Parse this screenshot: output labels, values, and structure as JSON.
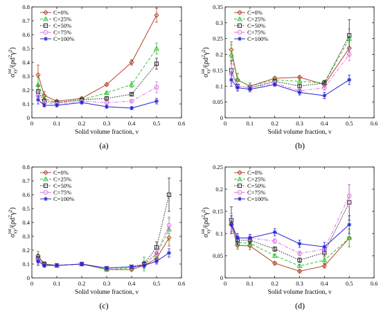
{
  "legend_labels": [
    "C=0%",
    "C=25%",
    "C=50%",
    "C=75%",
    "C=100%"
  ],
  "series_styles": [
    {
      "color": "#b5442c",
      "dash": "",
      "marker": "diamond"
    },
    {
      "color": "#2ec22e",
      "dash": "4,2.5",
      "marker": "triangle"
    },
    {
      "color": "#2a2a2a",
      "dash": "1.6,1.6",
      "marker": "square"
    },
    {
      "color": "#e070e6",
      "dash": "5,2,1.5,2",
      "marker": "circle"
    },
    {
      "color": "#2222d8",
      "dash": "",
      "marker": "star"
    }
  ],
  "chart_data": [
    {
      "type": "line",
      "panel_label": "(a)",
      "xlabel": "Solid volume fraction, ν",
      "ylabel": "σxy^tot/(ρd²γ̇²)",
      "xlim": [
        0,
        0.6
      ],
      "ylim": [
        0,
        0.8
      ],
      "xticks": [
        0,
        0.1,
        0.2,
        0.3,
        0.4,
        0.5,
        0.6
      ],
      "xtick_labels": [
        "0",
        "0.1",
        "0.2",
        "0.3",
        "0.4",
        "0.5",
        "0.6"
      ],
      "yticks": [
        0,
        0.1,
        0.2,
        0.3,
        0.4,
        0.5,
        0.6,
        0.7,
        0.8
      ],
      "ytick_labels": [
        "0",
        "0.1",
        "0.2",
        "0.3",
        "0.4",
        "0.5",
        "0.6",
        "0.7",
        "0.8"
      ],
      "x": [
        0.025,
        0.05,
        0.1,
        0.2,
        0.3,
        0.4,
        0.5
      ],
      "series": [
        {
          "name": "C=0%",
          "values": [
            0.31,
            0.16,
            0.12,
            0.14,
            0.24,
            0.4,
            0.74
          ],
          "errors": [
            0.07,
            0.03,
            0.01,
            0.01,
            0.01,
            0.02,
            0.05
          ]
        },
        {
          "name": "C=25%",
          "values": [
            0.24,
            0.14,
            0.11,
            0.13,
            0.18,
            0.24,
            0.5
          ],
          "errors": [
            0.05,
            0.02,
            0.01,
            0.01,
            0.01,
            0.02,
            0.04
          ]
        },
        {
          "name": "C=50%",
          "values": [
            0.19,
            0.12,
            0.11,
            0.13,
            0.14,
            0.17,
            0.39
          ],
          "errors": [
            0.04,
            0.02,
            0.01,
            0.01,
            0.01,
            0.01,
            0.04
          ]
        },
        {
          "name": "C=75%",
          "values": [
            0.16,
            0.11,
            0.1,
            0.12,
            0.11,
            0.12,
            0.22
          ],
          "errors": [
            0.03,
            0.02,
            0.01,
            0.01,
            0.01,
            0.01,
            0.04
          ]
        },
        {
          "name": "C=100%",
          "values": [
            0.13,
            0.09,
            0.09,
            0.11,
            0.08,
            0.07,
            0.12
          ],
          "errors": [
            0.03,
            0.01,
            0.01,
            0.01,
            0.01,
            0.01,
            0.02
          ]
        }
      ]
    },
    {
      "type": "line",
      "panel_label": "(b)",
      "xlabel": "Solid volume fraction, ν",
      "ylabel": "σxy^tot/(ρd²γ̇²)",
      "xlim": [
        0,
        0.6
      ],
      "ylim": [
        0,
        0.35
      ],
      "xticks": [
        0,
        0.1,
        0.2,
        0.3,
        0.4,
        0.5,
        0.6
      ],
      "xtick_labels": [
        "0",
        "0.1",
        "0.2",
        "0.3",
        "0.4",
        "0.5",
        "0.6"
      ],
      "yticks": [
        0,
        0.05,
        0.1,
        0.15,
        0.2,
        0.25,
        0.3,
        0.35
      ],
      "ytick_labels": [
        "0",
        "0.05",
        "0.1",
        "0.15",
        "0.2",
        "0.25",
        "0.3",
        "0.35"
      ],
      "x": [
        0.025,
        0.05,
        0.1,
        0.2,
        0.3,
        0.4,
        0.5
      ],
      "series": [
        {
          "name": "C=0%",
          "values": [
            0.215,
            0.12,
            0.1,
            0.125,
            0.128,
            0.105,
            0.22
          ],
          "errors": [
            0.025,
            0.02,
            0.01,
            0.005,
            0.005,
            0.008,
            0.025
          ]
        },
        {
          "name": "C=25%",
          "values": [
            0.2,
            0.12,
            0.1,
            0.12,
            0.115,
            0.11,
            0.25
          ],
          "errors": [
            0.03,
            0.02,
            0.01,
            0.005,
            0.005,
            0.008,
            0.03
          ]
        },
        {
          "name": "C=50%",
          "values": [
            0.15,
            0.1,
            0.095,
            0.115,
            0.1,
            0.11,
            0.26
          ],
          "errors": [
            0.03,
            0.015,
            0.008,
            0.005,
            0.005,
            0.008,
            0.05
          ]
        },
        {
          "name": "C=75%",
          "values": [
            0.14,
            0.1,
            0.095,
            0.11,
            0.085,
            0.095,
            0.2
          ],
          "errors": [
            0.03,
            0.015,
            0.008,
            0.005,
            0.005,
            0.008,
            0.02
          ]
        },
        {
          "name": "C=100%",
          "values": [
            0.12,
            0.095,
            0.09,
            0.105,
            0.08,
            0.07,
            0.12
          ],
          "errors": [
            0.02,
            0.01,
            0.008,
            0.005,
            0.008,
            0.01,
            0.015
          ]
        }
      ]
    },
    {
      "type": "line",
      "panel_label": "(c)",
      "xlabel": "Solid volume fraction, ν",
      "ylabel": "σxy^tot/(ρd²γ̇²)",
      "xlim": [
        0,
        0.6
      ],
      "ylim": [
        0,
        0.8
      ],
      "xticks": [
        0,
        0.1,
        0.2,
        0.3,
        0.4,
        0.5,
        0.6
      ],
      "xtick_labels": [
        "0",
        "0.1",
        "0.2",
        "0.3",
        "0.4",
        "0.5",
        "0.6"
      ],
      "yticks": [
        0,
        0.1,
        0.2,
        0.3,
        0.4,
        0.5,
        0.6,
        0.7,
        0.8
      ],
      "ytick_labels": [
        "0",
        "0.1",
        "0.2",
        "0.3",
        "0.4",
        "0.5",
        "0.6",
        "0.7",
        "0.8"
      ],
      "x": [
        0.025,
        0.05,
        0.1,
        0.2,
        0.3,
        0.4,
        0.45,
        0.5,
        0.55
      ],
      "series": [
        {
          "name": "C=0%",
          "values": [
            0.16,
            0.1,
            0.09,
            0.1,
            0.06,
            0.06,
            0.09,
            0.14,
            0.29
          ],
          "errors": [
            0.03,
            0.015,
            0.01,
            0.01,
            0.01,
            0.01,
            0.02,
            0.03,
            0.06
          ]
        },
        {
          "name": "C=25%",
          "values": [
            0.15,
            0.1,
            0.09,
            0.1,
            0.06,
            0.07,
            0.1,
            0.17,
            0.35
          ],
          "errors": [
            0.04,
            0.015,
            0.01,
            0.01,
            0.01,
            0.01,
            0.05,
            0.04,
            0.08
          ]
        },
        {
          "name": "C=50%",
          "values": [
            0.14,
            0.1,
            0.09,
            0.1,
            0.07,
            0.08,
            0.1,
            0.22,
            0.6
          ],
          "errors": [
            0.03,
            0.015,
            0.01,
            0.01,
            0.01,
            0.01,
            0.02,
            0.04,
            0.12
          ]
        },
        {
          "name": "C=75%",
          "values": [
            0.13,
            0.09,
            0.09,
            0.1,
            0.07,
            0.08,
            0.09,
            0.18,
            0.38
          ],
          "errors": [
            0.03,
            0.015,
            0.01,
            0.01,
            0.01,
            0.01,
            0.02,
            0.03,
            0.06
          ]
        },
        {
          "name": "C=100%",
          "values": [
            0.12,
            0.09,
            0.09,
            0.1,
            0.07,
            0.08,
            0.09,
            0.12,
            0.18
          ],
          "errors": [
            0.03,
            0.01,
            0.01,
            0.01,
            0.01,
            0.01,
            0.02,
            0.02,
            0.03
          ]
        }
      ]
    },
    {
      "type": "line",
      "panel_label": "(d)",
      "xlabel": "Solid volume fraction, ν",
      "ylabel": "σxy^tot/(ρd²γ̇²)",
      "xlim": [
        0,
        0.6
      ],
      "ylim": [
        0,
        0.25
      ],
      "xticks": [
        0,
        0.1,
        0.2,
        0.3,
        0.4,
        0.5,
        0.6
      ],
      "xtick_labels": [
        "0",
        "0.1",
        "0.2",
        "0.3",
        "0.4",
        "0.5",
        "0.6"
      ],
      "yticks": [
        0,
        0.05,
        0.1,
        0.15,
        0.2,
        0.25
      ],
      "ytick_labels": [
        "0",
        "0.05",
        "0.1",
        "0.15",
        "0.2",
        "0.25"
      ],
      "x": [
        0.025,
        0.05,
        0.1,
        0.2,
        0.3,
        0.4,
        0.5
      ],
      "series": [
        {
          "name": "C=0%",
          "values": [
            0.12,
            0.073,
            0.072,
            0.033,
            0.015,
            0.027,
            0.09
          ],
          "errors": [
            0.02,
            0.008,
            0.008,
            0.004,
            0.004,
            0.005,
            0.02
          ]
        },
        {
          "name": "C=25%",
          "values": [
            0.125,
            0.08,
            0.078,
            0.05,
            0.027,
            0.04,
            0.09
          ],
          "errors": [
            0.02,
            0.008,
            0.008,
            0.004,
            0.004,
            0.006,
            0.02
          ]
        },
        {
          "name": "C=50%",
          "values": [
            0.13,
            0.085,
            0.085,
            0.065,
            0.04,
            0.057,
            0.17
          ],
          "errors": [
            0.03,
            0.01,
            0.008,
            0.005,
            0.005,
            0.008,
            0.04
          ]
        },
        {
          "name": "C=75%",
          "values": [
            0.125,
            0.09,
            0.09,
            0.083,
            0.055,
            0.065,
            0.185
          ],
          "errors": [
            0.02,
            0.01,
            0.008,
            0.005,
            0.005,
            0.008,
            0.025
          ]
        },
        {
          "name": "C=100%",
          "values": [
            0.12,
            0.09,
            0.09,
            0.103,
            0.077,
            0.07,
            0.12
          ],
          "errors": [
            0.02,
            0.01,
            0.008,
            0.008,
            0.008,
            0.01,
            0.02
          ]
        }
      ]
    }
  ]
}
